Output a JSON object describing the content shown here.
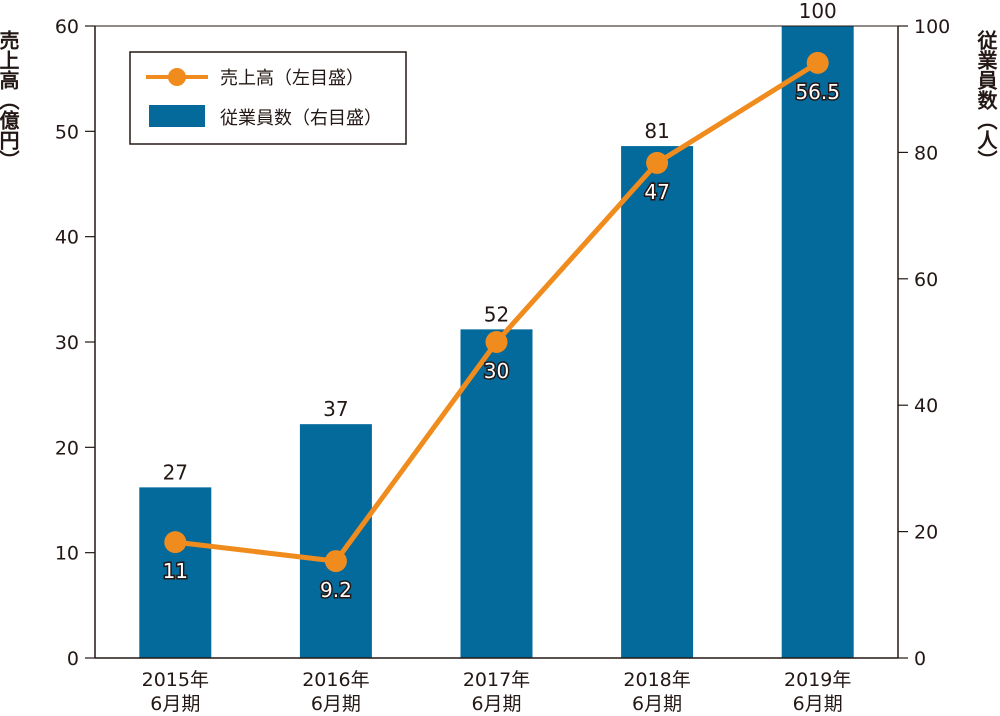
{
  "chart_data": {
    "type": "bar",
    "categories": [
      "2015年\n6月期",
      "2016年\n6月期",
      "2017年\n6月期",
      "2018年\n6月期",
      "2019年\n6月期"
    ],
    "series": [
      {
        "name": "従業員数（右目盛）",
        "type": "bar",
        "axis": "right",
        "values": [
          27,
          37,
          52,
          81,
          100
        ],
        "labels": [
          "27",
          "37",
          "52",
          "81",
          "100"
        ],
        "color": "#046a9c"
      },
      {
        "name": "売上高（左目盛）",
        "type": "line",
        "axis": "left",
        "values": [
          11,
          9.2,
          30,
          47,
          56.5
        ],
        "labels": [
          "11",
          "9.2",
          "30",
          "47",
          "56.5"
        ],
        "color": "#f08c1e"
      }
    ],
    "y_left": {
      "label": "売上高（億円）",
      "lim": [
        0,
        60
      ],
      "ticks": [
        "0",
        "10",
        "20",
        "30",
        "40",
        "50",
        "60"
      ]
    },
    "y_right": {
      "label": "従業員数（人）",
      "lim": [
        0,
        100
      ],
      "ticks": [
        "0",
        "20",
        "40",
        "60",
        "80",
        "100"
      ]
    },
    "legend": {
      "position": "top-left",
      "items": [
        {
          "label": "売上高（左目盛）",
          "kind": "line",
          "color": "#f08c1e"
        },
        {
          "label": "従業員数（右目盛）",
          "kind": "bar",
          "color": "#046a9c"
        }
      ]
    },
    "grid": false
  }
}
